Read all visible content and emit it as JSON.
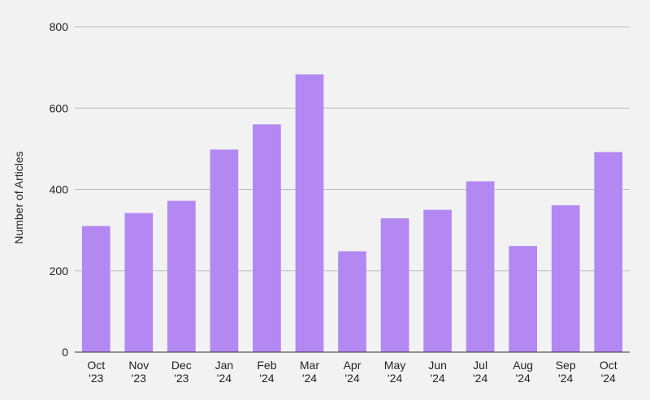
{
  "chart_data": {
    "type": "bar",
    "title": "",
    "xlabel": "",
    "ylabel": "Number of Articles",
    "ylim": [
      0,
      800
    ],
    "yticks": [
      "0",
      "200",
      "400",
      "600",
      "800"
    ],
    "grid": true,
    "legend": "none",
    "categories": [
      [
        "Oct",
        "'23"
      ],
      [
        "Nov",
        "'23"
      ],
      [
        "Dec",
        "'23"
      ],
      [
        "Jan",
        "'24"
      ],
      [
        "Feb",
        "'24"
      ],
      [
        "Mar",
        "'24"
      ],
      [
        "Apr",
        "'24"
      ],
      [
        "May",
        "'24"
      ],
      [
        "Jun",
        "'24"
      ],
      [
        "Jul",
        "'24"
      ],
      [
        "Aug",
        "'24"
      ],
      [
        "Sep",
        "'24"
      ],
      [
        "Oct",
        "'24"
      ]
    ],
    "values": [
      310,
      342,
      372,
      498,
      560,
      683,
      248,
      329,
      350,
      420,
      261,
      361,
      492
    ],
    "colors": {
      "bar": "#b388f2",
      "grid": "#bdbdbd",
      "axis": "#333333",
      "background": "#f2f2f2",
      "text": "#222222"
    }
  }
}
